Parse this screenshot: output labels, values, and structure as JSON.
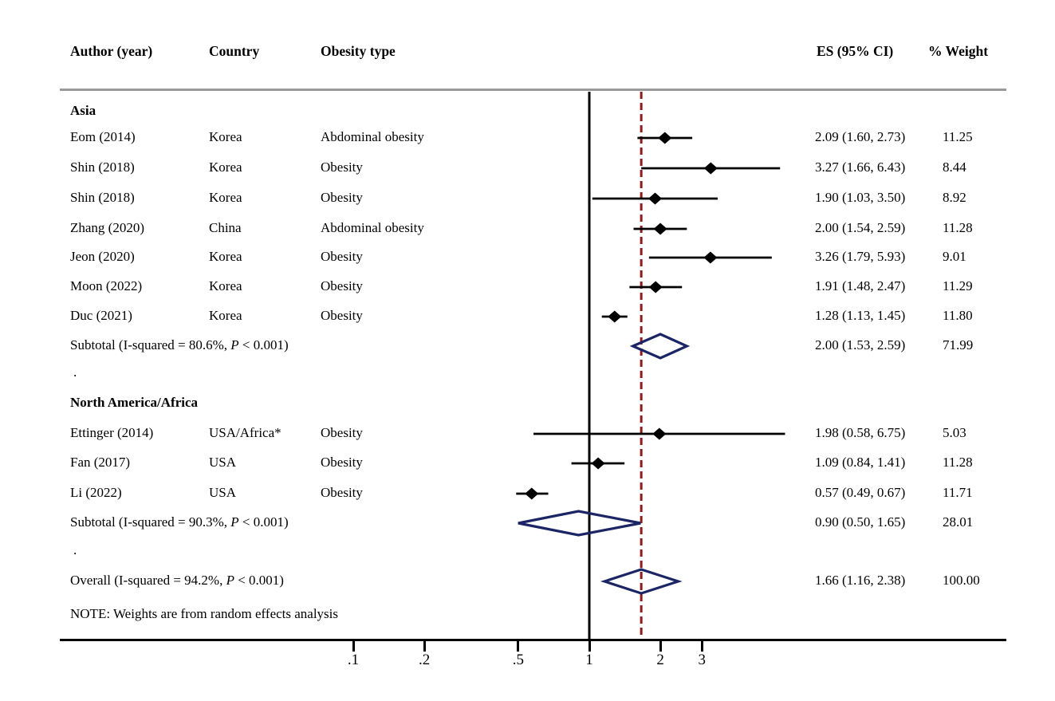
{
  "header": {
    "author_year": "Author (year)",
    "country": "Country",
    "obesity_type": "Obesity type",
    "es_ci": "ES (95% CI)",
    "weight": "% Weight"
  },
  "chart_data": {
    "type": "forest",
    "x_axis": {
      "scale": "log10",
      "ticks": [
        {
          "v": 0.1,
          "label": ".1"
        },
        {
          "v": 0.2,
          "label": ".2"
        },
        {
          "v": 0.5,
          "label": ".5"
        },
        {
          "v": 1,
          "label": "1"
        },
        {
          "v": 2,
          "label": "2"
        },
        {
          "v": 3,
          "label": "3"
        }
      ],
      "reference_value": 1,
      "pooled_value": 1.66
    },
    "colors": {
      "reference_line": "#000000",
      "pooled_dashed_line": "#8e1b1b",
      "diamond_outline": "#1b2566",
      "marker": "#000000",
      "separator": "#9a9a9a"
    },
    "rows": [
      {
        "type": "section",
        "label": "Asia"
      },
      {
        "type": "study",
        "author": "Eom (2014)",
        "country": "Korea",
        "obesity": "Abdominal obesity",
        "es": 2.09,
        "lo": 1.6,
        "hi": 2.73,
        "es_text": "2.09 (1.60, 2.73)",
        "weight": "11.25"
      },
      {
        "type": "study",
        "author": "Shin (2018)",
        "country": "Korea",
        "obesity": "Obesity",
        "es": 3.27,
        "lo": 1.66,
        "hi": 6.43,
        "es_text": "3.27 (1.66, 6.43)",
        "weight": "8.44"
      },
      {
        "type": "study",
        "author": "Shin (2018)",
        "country": "Korea",
        "obesity": "Obesity",
        "es": 1.9,
        "lo": 1.03,
        "hi": 3.5,
        "es_text": "1.90 (1.03, 3.50)",
        "weight": "8.92"
      },
      {
        "type": "study",
        "author": "Zhang (2020)",
        "country": "China",
        "obesity": "Abdominal obesity",
        "es": 2.0,
        "lo": 1.54,
        "hi": 2.59,
        "es_text": "2.00 (1.54, 2.59)",
        "weight": "11.28"
      },
      {
        "type": "study",
        "author": "Jeon (2020)",
        "country": "Korea",
        "obesity": "Obesity",
        "es": 3.26,
        "lo": 1.79,
        "hi": 5.93,
        "es_text": "3.26 (1.79, 5.93)",
        "weight": "9.01"
      },
      {
        "type": "study",
        "author": "Moon (2022)",
        "country": "Korea",
        "obesity": "Obesity",
        "es": 1.91,
        "lo": 1.48,
        "hi": 2.47,
        "es_text": "1.91 (1.48, 2.47)",
        "weight": "11.29"
      },
      {
        "type": "study",
        "author": "Duc (2021)",
        "country": "Korea",
        "obesity": "Obesity",
        "es": 1.28,
        "lo": 1.13,
        "hi": 1.45,
        "es_text": "1.28 (1.13, 1.45)",
        "weight": "11.80"
      },
      {
        "type": "subtotal",
        "label_pre": "Subtotal  (I-squared = 80.6%, ",
        "label_p": "P",
        "label_post": " < 0.001)",
        "es": 2.0,
        "lo": 1.53,
        "hi": 2.59,
        "es_text": "2.00 (1.53, 2.59)",
        "weight": "71.99"
      },
      {
        "type": "spacer",
        "label": "."
      },
      {
        "type": "section",
        "label": "North America/Africa"
      },
      {
        "type": "study",
        "author": "Ettinger (2014)",
        "country": "USA/Africa*",
        "obesity": "Obesity",
        "es": 1.98,
        "lo": 0.58,
        "hi": 6.75,
        "es_text": "1.98 (0.58, 6.75)",
        "weight": "5.03"
      },
      {
        "type": "study",
        "author": "Fan (2017)",
        "country": "USA",
        "obesity": "Obesity",
        "es": 1.09,
        "lo": 0.84,
        "hi": 1.41,
        "es_text": "1.09 (0.84, 1.41)",
        "weight": "11.28"
      },
      {
        "type": "study",
        "author": "Li (2022)",
        "country": "USA",
        "obesity": "Obesity",
        "es": 0.57,
        "lo": 0.49,
        "hi": 0.67,
        "es_text": "0.57 (0.49, 0.67)",
        "weight": "11.71"
      },
      {
        "type": "subtotal",
        "label_pre": "Subtotal  (I-squared = 90.3%, ",
        "label_p": "P",
        "label_post": " < 0.001)",
        "es": 0.9,
        "lo": 0.5,
        "hi": 1.65,
        "es_text": "0.90 (0.50, 1.65)",
        "weight": "28.01"
      },
      {
        "type": "spacer",
        "label": "."
      },
      {
        "type": "overall",
        "label_pre": "Overall  (I-squared = 94.2%, ",
        "label_p": "P",
        "label_post": " < 0.001)",
        "es": 1.66,
        "lo": 1.16,
        "hi": 2.38,
        "es_text": "1.66 (1.16, 2.38)",
        "weight": "100.00"
      },
      {
        "type": "note",
        "label": "NOTE: Weights are from random effects analysis"
      }
    ]
  }
}
